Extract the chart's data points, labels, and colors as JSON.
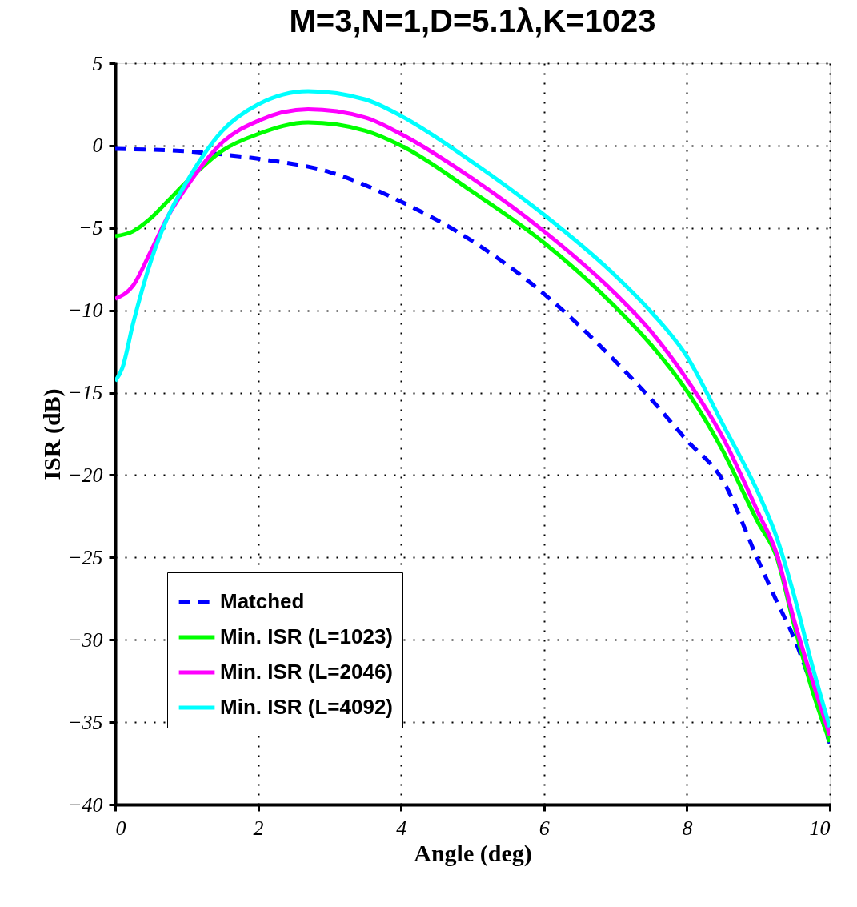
{
  "chart_data": {
    "type": "line",
    "title": "M=3,N=1,D=5.1λ,K=1023",
    "xlabel": "Angle (deg)",
    "ylabel": "ISR (dB)",
    "xlim": [
      0,
      10
    ],
    "xticks": [
      0,
      2,
      4,
      6,
      8,
      10
    ],
    "ylim": [
      -40,
      5
    ],
    "yticks": [
      -40,
      -35,
      -30,
      -25,
      -20,
      -15,
      -10,
      -5,
      0,
      5
    ],
    "grid": true,
    "legend": "bottom left",
    "marker": "none",
    "series": [
      {
        "name": "Matched",
        "color": "#0000ff",
        "line_style": "dashed",
        "x": [
          0,
          1,
          2,
          3,
          4,
          5,
          6,
          7,
          7.5,
          8,
          8.5,
          9,
          9.25,
          9.5,
          10
        ],
        "values": [
          -0.2,
          -0.35,
          -0.8,
          -1.6,
          -3.4,
          -5.8,
          -9.0,
          -13.1,
          -15.4,
          -17.9,
          -20.3,
          -25.2,
          -27.6,
          -29.9,
          -36.3
        ]
      },
      {
        "name": "Min. ISR (L=1023)",
        "color": "#00ff00",
        "line_style": "solid",
        "x": [
          0,
          0.25,
          0.5,
          0.75,
          1,
          1.5,
          2,
          2.7,
          3.5,
          4,
          5,
          6,
          7,
          7.5,
          8,
          8.5,
          9,
          9.25,
          9.5,
          9.75,
          10
        ],
        "values": [
          -5.5,
          -5.2,
          -4.4,
          -3.3,
          -2.2,
          -0.3,
          0.7,
          1.4,
          0.9,
          0,
          -2.8,
          -5.9,
          -9.8,
          -12.1,
          -14.9,
          -18.5,
          -22.9,
          -24.9,
          -29.1,
          -33,
          -36.2
        ]
      },
      {
        "name": "Min. ISR (L=2046)",
        "color": "#ff00ff",
        "line_style": "solid",
        "x": [
          0,
          0.25,
          0.5,
          0.75,
          1,
          1.5,
          2,
          2.7,
          3.5,
          4,
          5,
          6,
          7,
          7.5,
          8,
          8.5,
          9,
          9.25,
          9.5,
          9.75,
          10
        ],
        "values": [
          -9.3,
          -8.5,
          -6.4,
          -4.2,
          -2.5,
          0.2,
          1.5,
          2.2,
          1.7,
          0.7,
          -2.0,
          -5.2,
          -9.0,
          -11.3,
          -14.2,
          -17.7,
          -22.3,
          -24.7,
          -28.8,
          -32.4,
          -35.8
        ]
      },
      {
        "name": "Min. ISR (L=4092)",
        "color": "#00ffff",
        "line_style": "solid",
        "x": [
          0,
          0.1,
          0.25,
          0.5,
          0.75,
          1,
          1.5,
          2,
          2.7,
          3.5,
          4,
          5,
          6,
          7,
          7.5,
          8,
          8.5,
          9,
          9.25,
          9.5,
          9.75,
          10
        ],
        "values": [
          -14.3,
          -13.5,
          -10.8,
          -7,
          -4.2,
          -2.2,
          0.9,
          2.5,
          3.3,
          2.8,
          1.8,
          -1.0,
          -4.2,
          -7.9,
          -10.1,
          -12.8,
          -16.9,
          -21.1,
          -23.7,
          -27.3,
          -31.5,
          -35.3
        ]
      }
    ]
  }
}
